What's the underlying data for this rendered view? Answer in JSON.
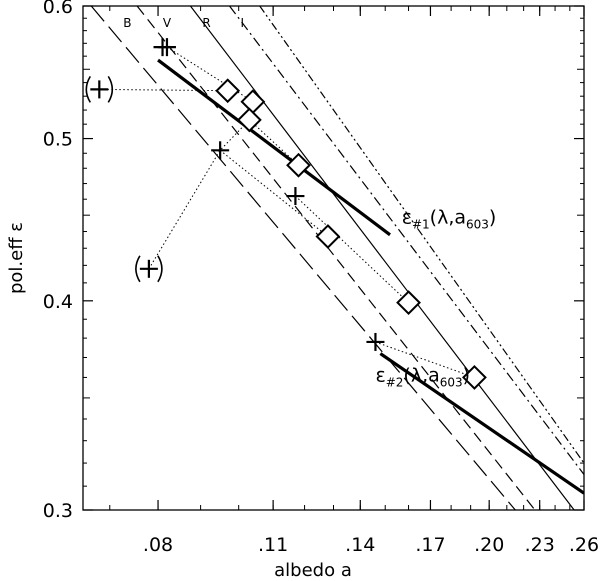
{
  "chart_data": {
    "type": "scatter",
    "xlabel": "albedo a",
    "ylabel": "pol.eff ε",
    "xscale": "log",
    "yscale": "log",
    "xlim": [
      0.065,
      0.26
    ],
    "ylim": [
      0.3,
      0.6
    ],
    "xticks": [
      {
        "value": 0.08,
        "label": ".08"
      },
      {
        "value": 0.11,
        "label": ".11"
      },
      {
        "value": 0.14,
        "label": ".14"
      },
      {
        "value": 0.17,
        "label": ".17"
      },
      {
        "value": 0.2,
        "label": ".20"
      },
      {
        "value": 0.23,
        "label": ".23"
      },
      {
        "value": 0.26,
        "label": ".26"
      }
    ],
    "yticks": [
      {
        "value": 0.3,
        "label": "0.3"
      },
      {
        "value": 0.4,
        "label": "0.4"
      },
      {
        "value": 0.5,
        "label": "0.5"
      },
      {
        "value": 0.6,
        "label": "0.6"
      }
    ],
    "band_labels": [
      {
        "text": "B",
        "a": 0.0735
      },
      {
        "text": "V",
        "a": 0.082
      },
      {
        "text": "R",
        "a": 0.0915
      },
      {
        "text": "I",
        "a": 0.101
      }
    ],
    "lines": [
      {
        "name": "B",
        "style": "long-dash",
        "points": [
          [
            0.0665,
            0.6
          ],
          [
            0.215,
            0.3
          ]
        ]
      },
      {
        "name": "V",
        "style": "dash",
        "points": [
          [
            0.0755,
            0.6
          ],
          [
            0.227,
            0.3
          ]
        ]
      },
      {
        "name": "R",
        "style": "solid",
        "points": [
          [
            0.0875,
            0.6
          ],
          [
            0.253,
            0.3
          ]
        ]
      },
      {
        "name": "I",
        "style": "dash-dot",
        "points": [
          [
            0.0975,
            0.6
          ],
          [
            0.26,
            0.315
          ]
        ]
      },
      {
        "name": "",
        "style": "dash-dot-dot",
        "points": [
          [
            0.106,
            0.6
          ],
          [
            0.26,
            0.32
          ]
        ]
      }
    ],
    "fit_lines": [
      {
        "name": "ε#1(λ,a603)",
        "points": [
          [
            0.08,
            0.557
          ],
          [
            0.152,
            0.438
          ]
        ]
      },
      {
        "name": "ε#2(λ,a603)",
        "points": [
          [
            0.148,
            0.372
          ],
          [
            0.26,
            0.307
          ]
        ]
      }
    ],
    "diamonds": [
      {
        "a": 0.097,
        "eps": 0.534
      },
      {
        "a": 0.104,
        "eps": 0.526
      },
      {
        "a": 0.103,
        "eps": 0.513
      },
      {
        "a": 0.118,
        "eps": 0.482
      },
      {
        "a": 0.128,
        "eps": 0.437
      },
      {
        "a": 0.16,
        "eps": 0.399
      },
      {
        "a": 0.192,
        "eps": 0.36
      }
    ],
    "plus_markers": [
      {
        "a": 0.081,
        "eps": 0.567
      },
      {
        "a": 0.082,
        "eps": 0.567
      },
      {
        "a": 0.095,
        "eps": 0.492
      },
      {
        "a": 0.117,
        "eps": 0.462
      },
      {
        "a": 0.146,
        "eps": 0.378
      }
    ],
    "parenthesized_markers": [
      {
        "a": 0.068,
        "eps": 0.535
      },
      {
        "a": 0.078,
        "eps": 0.418
      }
    ],
    "dotted_links": [
      [
        [
          0.068,
          0.535
        ],
        [
          0.097,
          0.534
        ]
      ],
      [
        [
          0.078,
          0.418
        ],
        [
          0.095,
          0.492
        ],
        [
          0.103,
          0.513
        ]
      ],
      [
        [
          0.095,
          0.492
        ],
        [
          0.128,
          0.437
        ]
      ],
      [
        [
          0.082,
          0.567
        ],
        [
          0.104,
          0.526
        ]
      ],
      [
        [
          0.117,
          0.462
        ],
        [
          0.16,
          0.399
        ]
      ],
      [
        [
          0.146,
          0.378
        ],
        [
          0.192,
          0.36
        ]
      ],
      [
        [
          0.103,
          0.513
        ],
        [
          0.118,
          0.482
        ]
      ]
    ],
    "annotations": [
      {
        "id": "eps1",
        "base": "ε",
        "sub": "#1",
        "mid": "(λ,a",
        "sub2": "603",
        "tail": ")",
        "a": 0.157,
        "eps": 0.445
      },
      {
        "id": "eps2",
        "base": "ε",
        "sub": "#2",
        "mid": "(λ,a",
        "sub2": "603",
        "tail": ")",
        "a": 0.146,
        "eps": 0.358
      }
    ],
    "grid": false
  }
}
